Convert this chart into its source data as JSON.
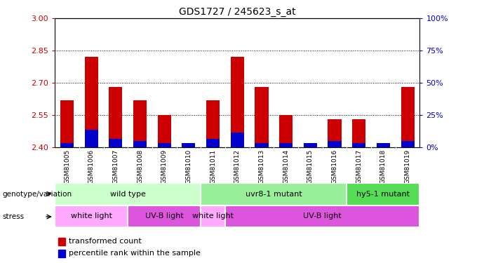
{
  "title": "GDS1727 / 245623_s_at",
  "samples": [
    "GSM81005",
    "GSM81006",
    "GSM81007",
    "GSM81008",
    "GSM81009",
    "GSM81010",
    "GSM81011",
    "GSM81012",
    "GSM81013",
    "GSM81014",
    "GSM81015",
    "GSM81016",
    "GSM81017",
    "GSM81018",
    "GSM81019"
  ],
  "red_values": [
    2.62,
    2.82,
    2.68,
    2.62,
    2.55,
    2.41,
    2.62,
    2.82,
    2.68,
    2.55,
    2.41,
    2.53,
    2.53,
    2.41,
    2.68
  ],
  "blue_values": [
    2.42,
    2.48,
    2.44,
    2.43,
    2.42,
    2.42,
    2.44,
    2.47,
    2.42,
    2.42,
    2.42,
    2.43,
    2.42,
    2.42,
    2.43
  ],
  "ymin": 2.4,
  "ymax": 3.0,
  "yticks": [
    2.4,
    2.55,
    2.7,
    2.85,
    3.0
  ],
  "grid_vals": [
    2.55,
    2.7,
    2.85
  ],
  "right_ytick_labels": [
    "0%",
    "25%",
    "50%",
    "75%",
    "100%"
  ],
  "right_yvals": [
    2.4,
    2.55,
    2.7,
    2.85,
    3.0
  ],
  "bar_width": 0.55,
  "red_color": "#cc0000",
  "blue_color": "#0000cc",
  "bg_color": "#ffffff",
  "tick_bg": "#c8c8c8",
  "genotype_groups": [
    {
      "label": "wild type",
      "start": 0,
      "end": 6,
      "color": "#ccffcc"
    },
    {
      "label": "uvr8-1 mutant",
      "start": 6,
      "end": 12,
      "color": "#99ee99"
    },
    {
      "label": "hy5-1 mutant",
      "start": 12,
      "end": 15,
      "color": "#55dd55"
    }
  ],
  "stress_groups": [
    {
      "label": "white light",
      "start": 0,
      "end": 3,
      "color": "#ffaaff"
    },
    {
      "label": "UV-B light",
      "start": 3,
      "end": 6,
      "color": "#dd55dd"
    },
    {
      "label": "white light",
      "start": 6,
      "end": 7,
      "color": "#ffaaff"
    },
    {
      "label": "UV-B light",
      "start": 7,
      "end": 15,
      "color": "#dd55dd"
    }
  ],
  "legend_red": "transformed count",
  "legend_blue": "percentile rank within the sample",
  "left_label_color": "#cc0000",
  "right_label_color": "#0000cc",
  "left_label": "genotype/variation",
  "stress_label": "stress"
}
